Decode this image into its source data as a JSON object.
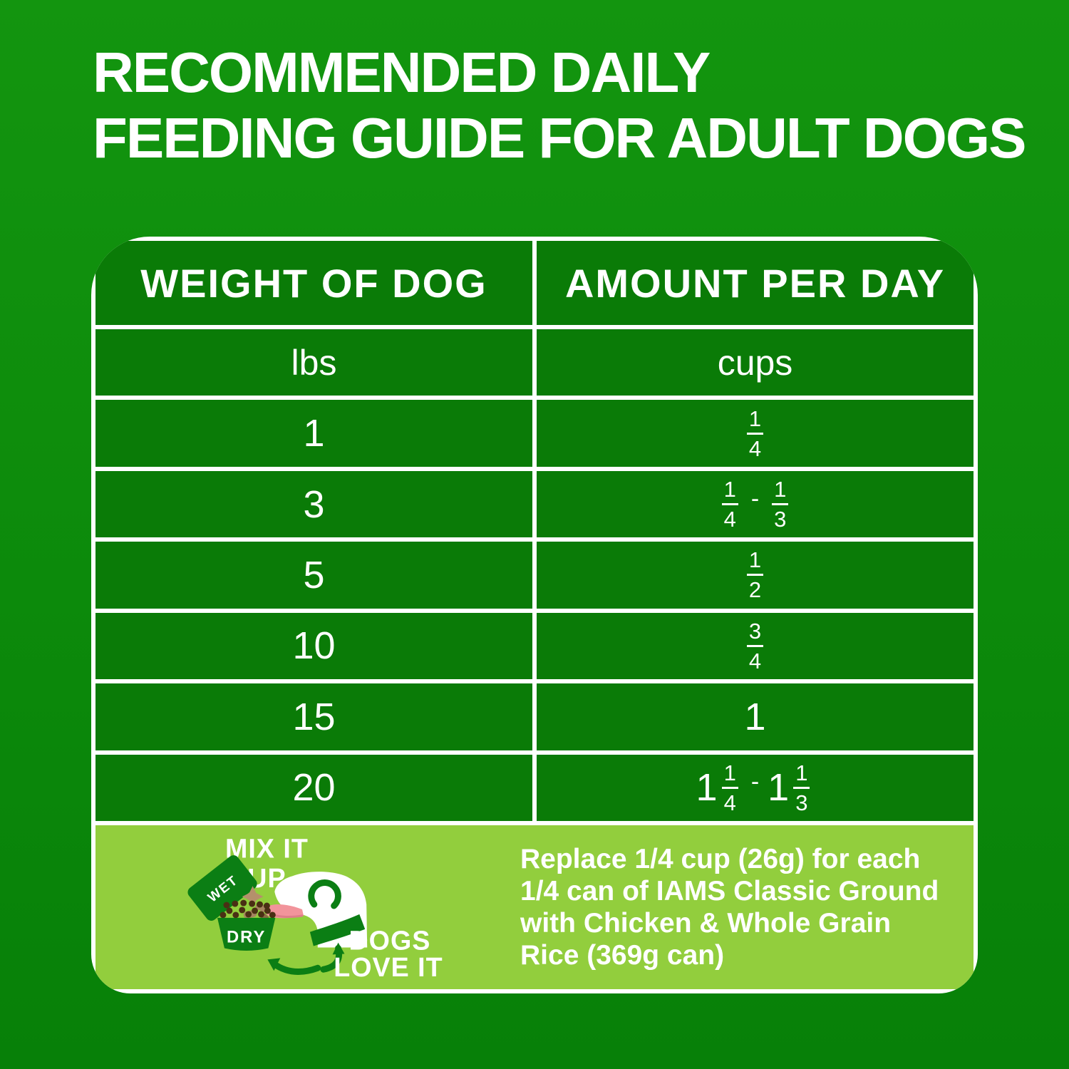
{
  "title": {
    "line1": "RECOMMENDED DAILY",
    "line2": "FEEDING GUIDE FOR ADULT DOGS"
  },
  "table": {
    "header_weight": "WEIGHT OF DOG",
    "header_amount": "AMOUNT PER DAY",
    "rows": [
      {
        "weight": "lbs",
        "amount": "cups",
        "is_units": true
      },
      {
        "weight": "1",
        "amount": "1/4"
      },
      {
        "weight": "3",
        "amount": "1/4 - 1/3"
      },
      {
        "weight": "5",
        "amount": "1/2"
      },
      {
        "weight": "10",
        "amount": "3/4"
      },
      {
        "weight": "15",
        "amount": "1"
      },
      {
        "weight": "20",
        "amount": "1 1/4 - 1 1/3"
      }
    ]
  },
  "footer": {
    "illustration": {
      "mix_line1": "MIX IT",
      "mix_line2": "UP",
      "wet_label": "WET",
      "dry_label": "DRY",
      "dogs_line1": "DOGS",
      "dogs_line2": "LOVE IT"
    },
    "note": "Replace 1/4 cup (26g) for each\n1/4 can of IAMS Classic Ground\nwith Chicken & Whole Grain\nRice (369g can)"
  },
  "colors": {
    "bg_top": "#13950F",
    "bg_bottom": "#078008",
    "cell_green": "#0A7B07",
    "footer_lime": "#92CE3D",
    "accent_dark_green": "#0B7E14",
    "tongue_pink": "#F2949B",
    "kibble_brown": "#4A2F14",
    "chunk_tan": "#A5845F",
    "text_white": "#FFFFFF"
  }
}
